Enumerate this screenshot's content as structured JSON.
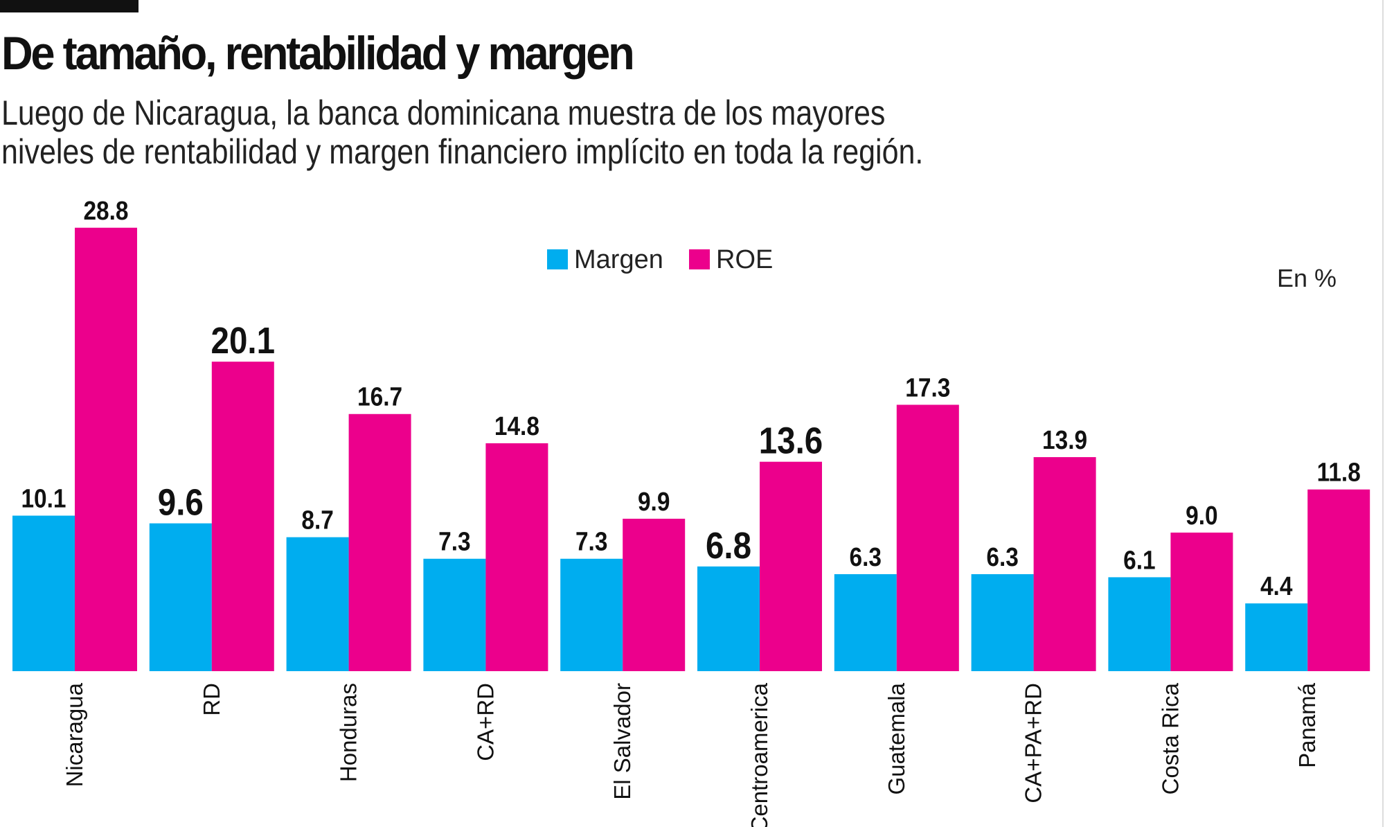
{
  "header": {
    "title": "De tamaño, rentabilidad y margen",
    "subtitle_lines": [
      "Luego de Nicaragua, la banca dominicana muestra de los mayores",
      "niveles de rentabilidad y margen financiero implícito en toda la región."
    ]
  },
  "chart_data": {
    "type": "bar",
    "unit_note": "En %",
    "categories": [
      "Nicaragua",
      "RD",
      "Honduras",
      "CA+RD",
      "El Salvador",
      "Centroamerica",
      "Guatemala",
      "CA+PA+RD",
      "Costa Rica",
      "Panamá"
    ],
    "series": [
      {
        "name": "Margen",
        "color": "#00ADEF",
        "values": [
          10.1,
          9.6,
          8.7,
          7.3,
          7.3,
          6.8,
          6.3,
          6.3,
          6.1,
          4.4
        ],
        "labels": [
          "10.1",
          "9.6",
          "8.7",
          "7.3",
          "7.3",
          "6.8",
          "6.3",
          "6.3",
          "6.1",
          "4.4"
        ]
      },
      {
        "name": "ROE",
        "color": "#EC008C",
        "values": [
          28.8,
          20.1,
          16.7,
          14.8,
          9.9,
          13.6,
          17.3,
          13.9,
          9.0,
          11.8
        ],
        "labels": [
          "28.8",
          "20.1",
          "16.7",
          "14.8",
          "9.9",
          "13.6",
          "17.3",
          "13.9",
          "9.0",
          "11.8"
        ]
      }
    ],
    "highlighted_categories": [
      "RD",
      "Centroamerica"
    ],
    "legend_position": "top-center",
    "grid": false,
    "ylim": [
      0,
      30
    ]
  }
}
